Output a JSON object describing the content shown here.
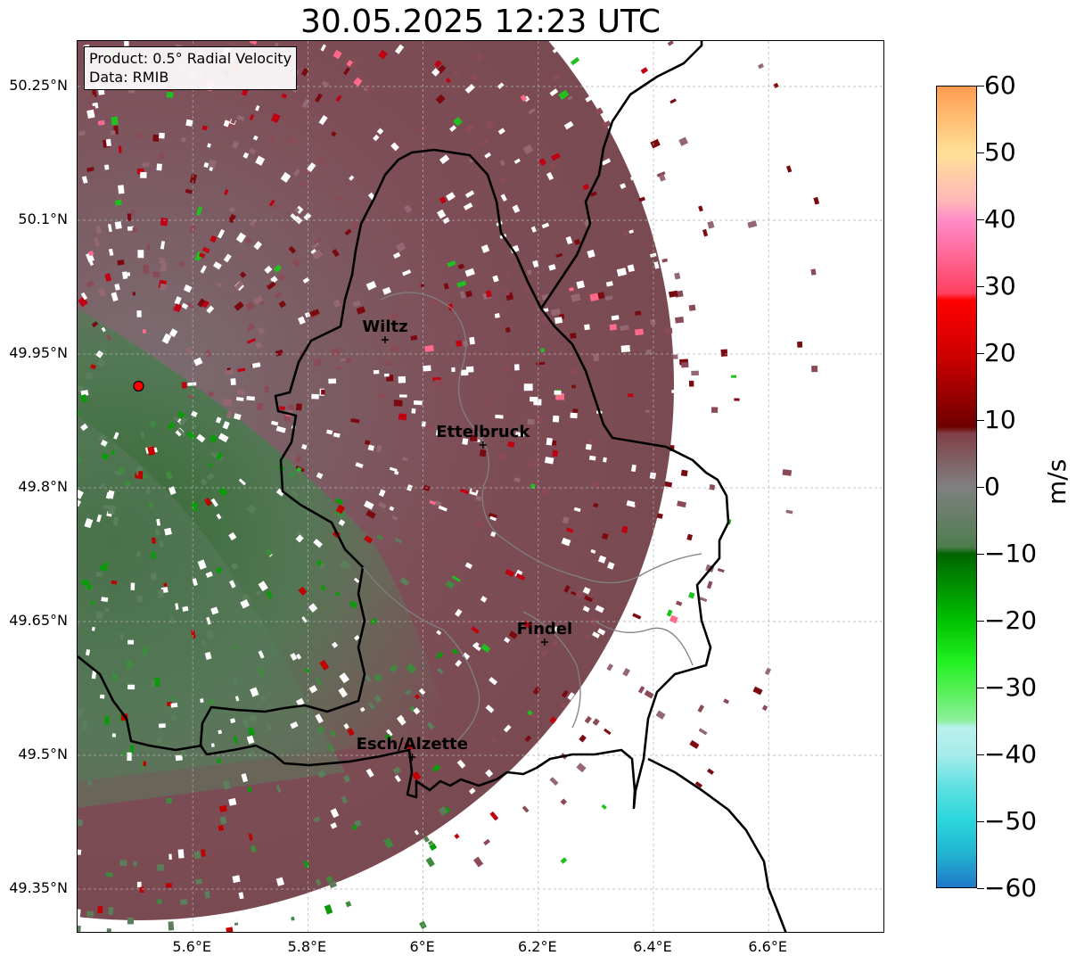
{
  "title": "30.05.2025 12:23 UTC",
  "info": {
    "product": "Product: 0.5° Radial Velocity",
    "data_source": "Data: RMIB"
  },
  "map": {
    "lon_range": [
      5.4,
      6.8
    ],
    "lat_range": [
      49.3,
      50.3
    ],
    "grid": true,
    "lat_ticks": [
      {
        "value": 50.25,
        "label": "50.25°N"
      },
      {
        "value": 50.1,
        "label": "50.1°N"
      },
      {
        "value": 49.95,
        "label": "49.95°N"
      },
      {
        "value": 49.8,
        "label": "49.8°N"
      },
      {
        "value": 49.65,
        "label": "49.65°N"
      },
      {
        "value": 49.5,
        "label": "49.5°N"
      },
      {
        "value": 49.35,
        "label": "49.35°N"
      }
    ],
    "lon_ticks": [
      {
        "value": 5.6,
        "label": "5.6°E"
      },
      {
        "value": 5.8,
        "label": "5.8°E"
      },
      {
        "value": 6.0,
        "label": "6°E"
      },
      {
        "value": 6.2,
        "label": "6.2°E"
      },
      {
        "value": 6.4,
        "label": "6.4°E"
      },
      {
        "value": 6.6,
        "label": "6.6°E"
      }
    ],
    "radar_site": {
      "lon": 5.506,
      "lat": 49.914,
      "color": "#ff0000"
    },
    "cities": [
      {
        "name": "Wiltz",
        "lon": 5.934,
        "lat": 49.966
      },
      {
        "name": "Ettelbruck",
        "lon": 6.104,
        "lat": 49.848
      },
      {
        "name": "Findel",
        "lon": 6.211,
        "lat": 49.627
      },
      {
        "name": "Esch/Alzette",
        "lon": 5.981,
        "lat": 49.498
      }
    ]
  },
  "colorbar": {
    "unit": "m/s",
    "min": -60,
    "max": 60,
    "ticks": [
      {
        "value": 60,
        "label": "60"
      },
      {
        "value": 50,
        "label": "50"
      },
      {
        "value": 40,
        "label": "40"
      },
      {
        "value": 30,
        "label": "30"
      },
      {
        "value": 20,
        "label": "20"
      },
      {
        "value": 10,
        "label": "10"
      },
      {
        "value": 0,
        "label": "0"
      },
      {
        "value": -10,
        "label": "−10"
      },
      {
        "value": -20,
        "label": "−20"
      },
      {
        "value": -30,
        "label": "−30"
      },
      {
        "value": -40,
        "label": "−40"
      },
      {
        "value": -50,
        "label": "−50"
      },
      {
        "value": -60,
        "label": "−60"
      }
    ],
    "stops": [
      {
        "value": -60,
        "color": "#1f78c8"
      },
      {
        "value": -55,
        "color": "#22b4d0"
      },
      {
        "value": -50,
        "color": "#2ad6dc"
      },
      {
        "value": -45,
        "color": "#5ee0e0"
      },
      {
        "value": -40,
        "color": "#a8ecec"
      },
      {
        "value": -36,
        "color": "#b8f0ec"
      },
      {
        "value": -35,
        "color": "#8cf09c"
      },
      {
        "value": -30,
        "color": "#50f050"
      },
      {
        "value": -26,
        "color": "#20f020"
      },
      {
        "value": -20,
        "color": "#00c000"
      },
      {
        "value": -10,
        "color": "#006400"
      },
      {
        "value": -9,
        "color": "#4e7d4e"
      },
      {
        "value": 0,
        "color": "#808080"
      },
      {
        "value": 8,
        "color": "#804048"
      },
      {
        "value": 9,
        "color": "#6e0000"
      },
      {
        "value": 20,
        "color": "#d00000"
      },
      {
        "value": 28,
        "color": "#ff0000"
      },
      {
        "value": 29,
        "color": "#ff4060"
      },
      {
        "value": 40,
        "color": "#ff8cc8"
      },
      {
        "value": 43,
        "color": "#ffb8b8"
      },
      {
        "value": 50,
        "color": "#ffe098"
      },
      {
        "value": 60,
        "color": "#ff9c50"
      }
    ]
  }
}
